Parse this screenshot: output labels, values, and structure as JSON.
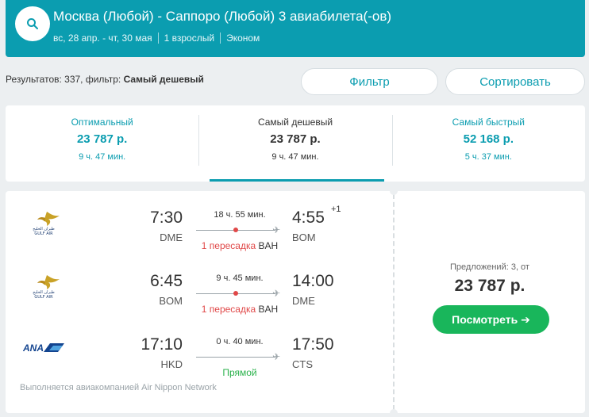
{
  "header": {
    "route": "Москва (Любой) - Саппоро (Любой) 3 авиабилета(-ов)",
    "dates": "вс, 28 апр. - чт, 30 мая",
    "passengers": "1 взрослый",
    "cabin": "Эконом"
  },
  "results": {
    "prefix": "Результатов: 337, фильтр:",
    "filter_value": "Самый дешевый"
  },
  "buttons": {
    "filter": "Фильтр",
    "sort": "Сортировать",
    "view": "Посмотреть ➔"
  },
  "tabs": [
    {
      "label": "Оптимальный",
      "price": "23 787 р.",
      "duration": "9 ч. 47 мин."
    },
    {
      "label": "Самый дешевый",
      "price": "23 787 р.",
      "duration": "9 ч. 47 мин."
    },
    {
      "label": "Самый быстрый",
      "price": "52 168 р.",
      "duration": "5 ч. 37 мин."
    }
  ],
  "segments": [
    {
      "airline": "Gulf Air",
      "dep_time": "7:30",
      "dep_code": "DME",
      "arr_time": "4:55",
      "arr_code": "BOM",
      "arr_plus": "+1",
      "duration": "18 ч. 55 мин.",
      "stops_label": "1 пересадка",
      "stop_code": "BAH"
    },
    {
      "airline": "Gulf Air",
      "dep_time": "6:45",
      "dep_code": "BOM",
      "arr_time": "14:00",
      "arr_code": "DME",
      "duration": "9 ч. 45 мин.",
      "stops_label": "1 пересадка",
      "stop_code": "BAH"
    },
    {
      "airline": "ANA",
      "dep_time": "17:10",
      "dep_code": "HKD",
      "arr_time": "17:50",
      "arr_code": "CTS",
      "duration": "0 ч. 40 мин.",
      "stops_label": "Прямой"
    }
  ],
  "operated_by": "Выполняется авиакомпанией Air Nippon Network",
  "offers": {
    "count_label": "Предложений: 3, от",
    "price": "23 787 р."
  },
  "colors": {
    "brand": "#0b9db0",
    "cta": "#19b65b",
    "stop_dot": "#e04848",
    "direct": "#2bb24c"
  }
}
